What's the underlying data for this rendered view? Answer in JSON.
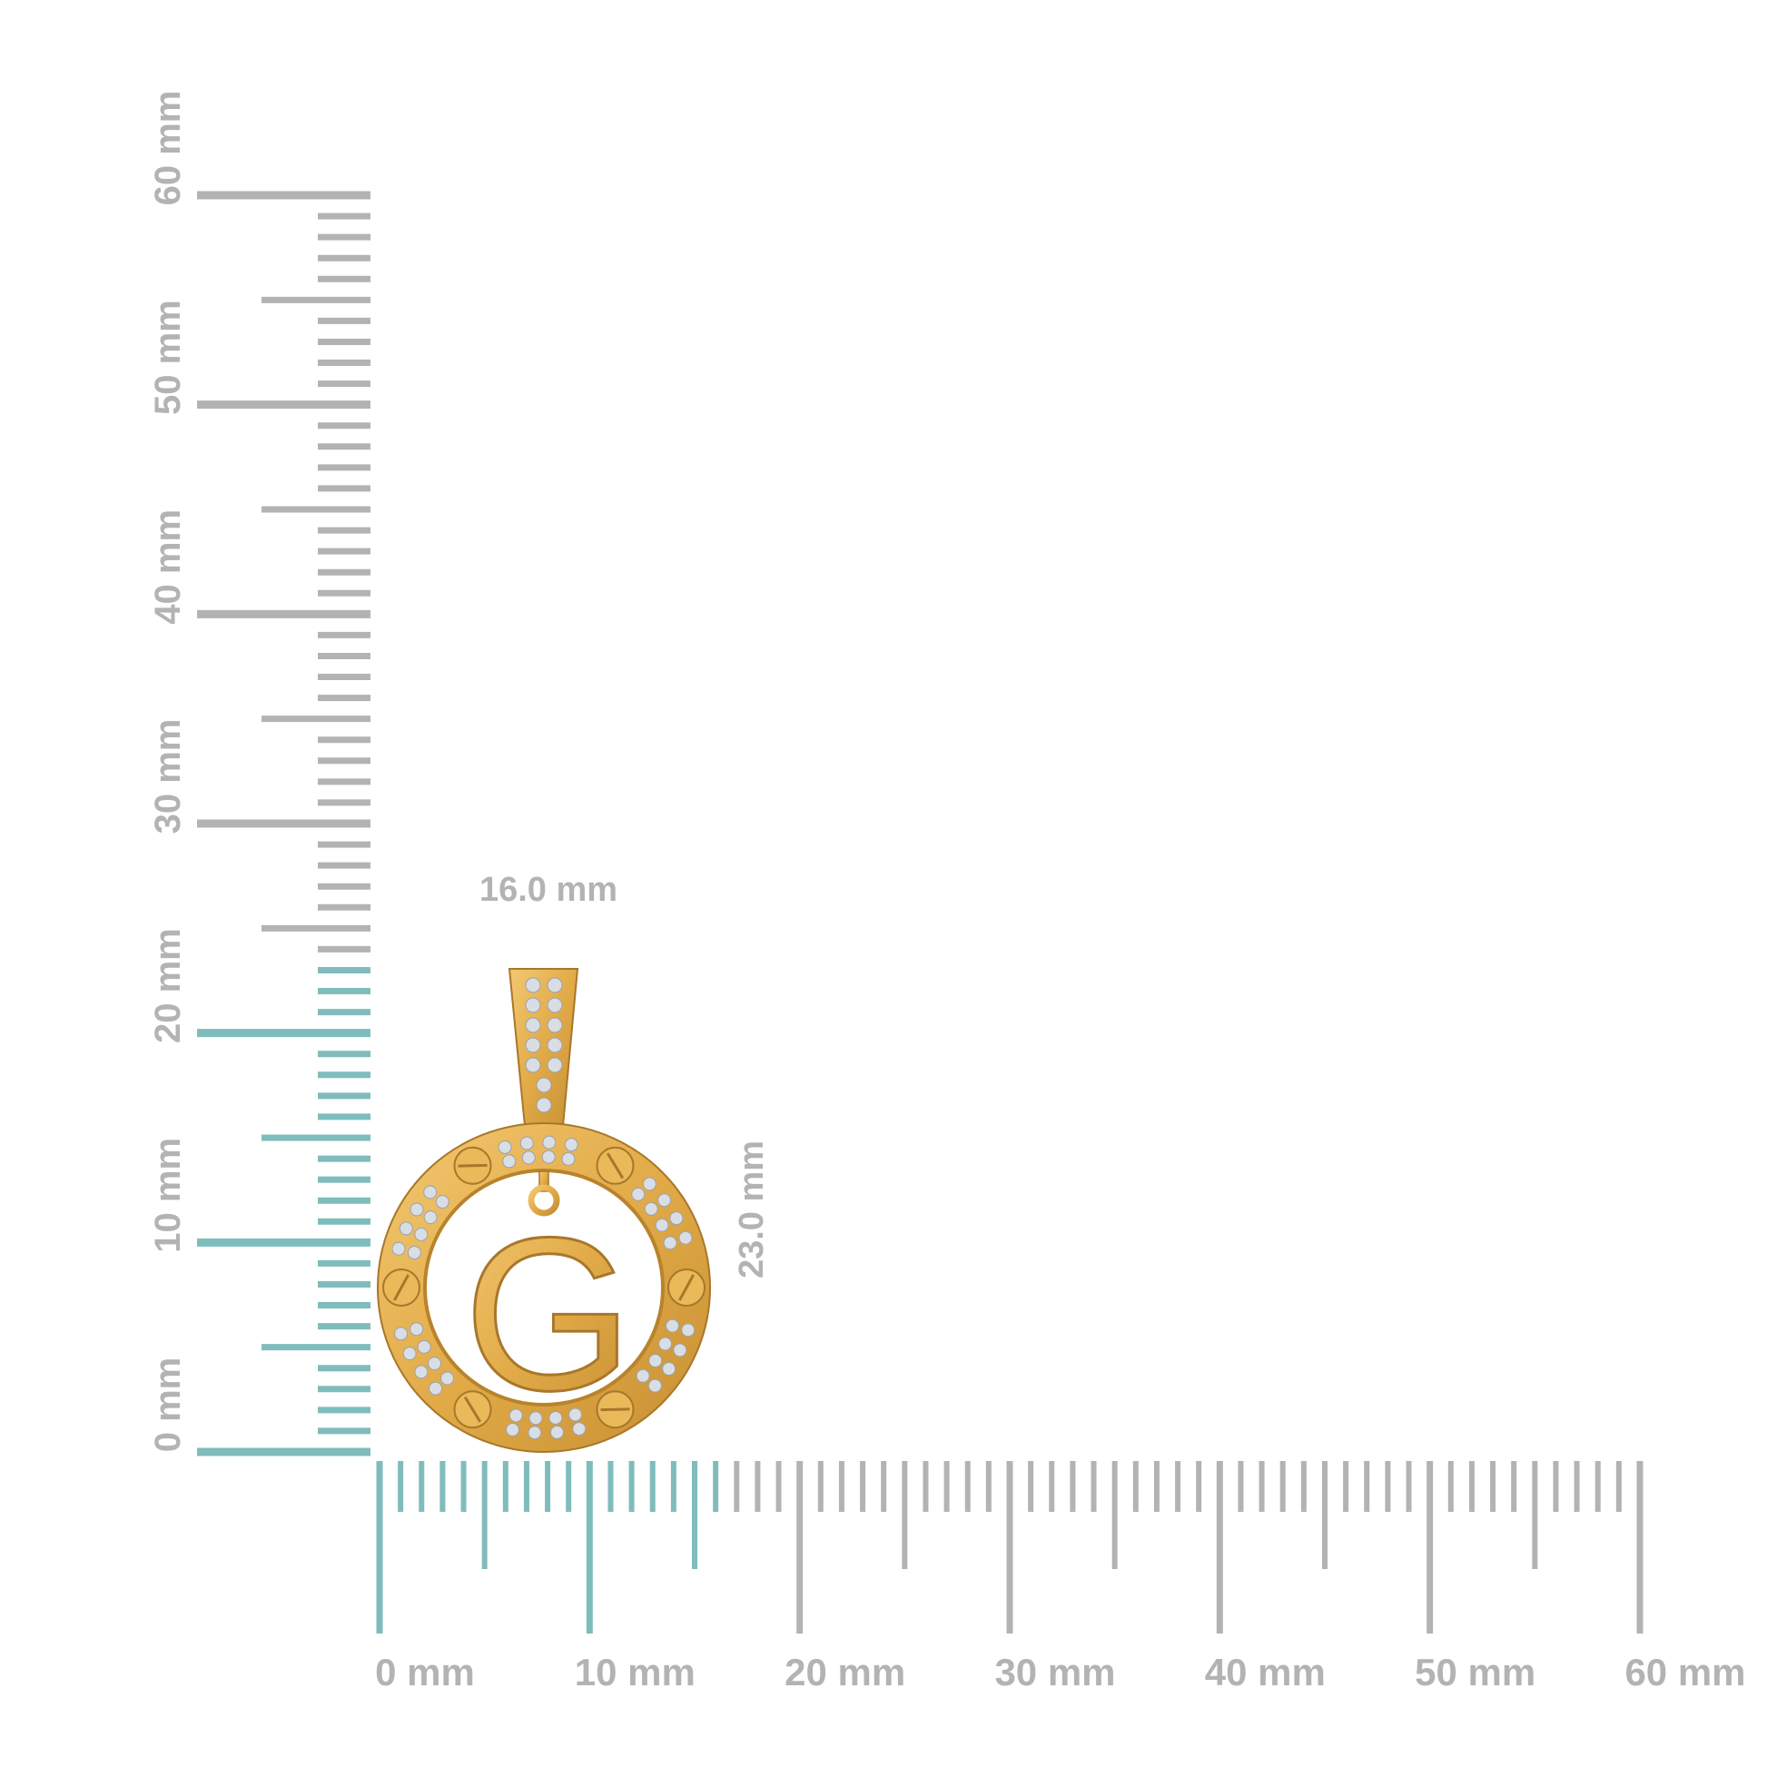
{
  "colors": {
    "ruler_gray": "#b3b3b3",
    "ruler_highlight": "#7fbcbc",
    "gold": "#e5b24f",
    "gold_dark": "#b9832c",
    "stone": "#d9dde4",
    "dimension_text": "#bdbdbd"
  },
  "vertical_ruler": {
    "range_mm": [
      0,
      60
    ],
    "highlight_to_mm": 23,
    "labels": [
      "0 mm",
      "10 mm",
      "20 mm",
      "30 mm",
      "40 mm",
      "50 mm",
      "60 mm"
    ]
  },
  "horizontal_ruler": {
    "range_mm": [
      0,
      60
    ],
    "highlight_to_mm": 16,
    "labels": [
      "0 mm",
      "10 mm",
      "20 mm",
      "30 mm",
      "40 mm",
      "50 mm",
      "60 mm"
    ]
  },
  "dimensions": {
    "width": "16.0 mm",
    "height": "23.0 mm"
  },
  "product": {
    "letter": "G",
    "icon": "letter-pendant"
  }
}
